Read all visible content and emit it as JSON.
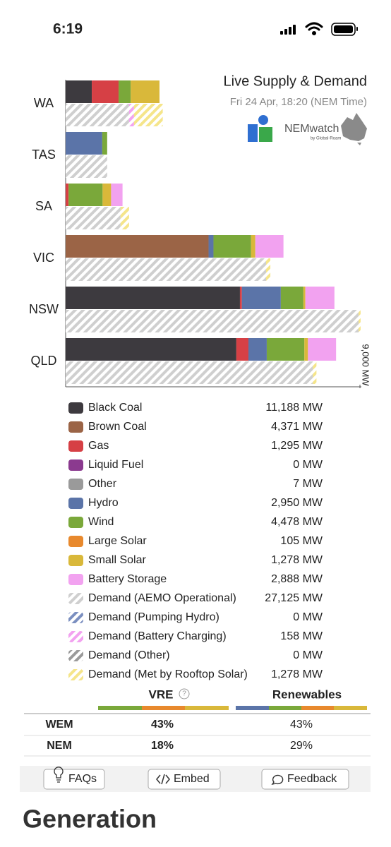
{
  "status_bar": {
    "time": "6:19"
  },
  "header": {
    "title": "Live Supply & Demand",
    "subtitle": "Fri 24 Apr, 18:20 (NEM Time)",
    "logo_text": "NEMwatch",
    "logo_subtext": "by Global-Roam"
  },
  "chart_data": {
    "type": "bar",
    "orientation": "horizontal",
    "stacked": true,
    "categories": [
      "WA",
      "TAS",
      "SA",
      "VIC",
      "NSW",
      "QLD"
    ],
    "xlim": [
      0,
      9000
    ],
    "xticks": [
      {
        "value": 9000,
        "label": "9,000 MW"
      }
    ],
    "series": [
      {
        "name": "Black Coal",
        "color": "#3d3a3f",
        "stack": "supply",
        "values": [
          800,
          null,
          null,
          null,
          5330,
          5220
        ],
        "total_label": "11,188 MW"
      },
      {
        "name": "Brown Coal",
        "color": "#9b6446",
        "stack": "supply",
        "values": [
          null,
          null,
          null,
          4371,
          null,
          null
        ],
        "total_label": "4,371 MW"
      },
      {
        "name": "Gas",
        "color": "#d64045",
        "stack": "supply",
        "values": [
          820,
          null,
          90,
          null,
          60,
          370
        ],
        "total_label": "1,295 MW"
      },
      {
        "name": "Liquid Fuel",
        "color": "#8b3a8f",
        "stack": "supply",
        "values": [
          null,
          null,
          null,
          null,
          null,
          null
        ],
        "total_label": "0 MW"
      },
      {
        "name": "Other",
        "color": "#9a9a9a",
        "stack": "supply",
        "values": [
          null,
          null,
          null,
          null,
          null,
          null
        ],
        "total_label": "7 MW"
      },
      {
        "name": "Hydro",
        "color": "#5b74a8",
        "stack": "supply",
        "values": [
          null,
          1120,
          null,
          150,
          1190,
          560
        ],
        "total_label": "2,950 MW"
      },
      {
        "name": "Wind",
        "color": "#7aa83a",
        "stack": "supply",
        "values": [
          370,
          150,
          1040,
          1150,
          690,
          1150
        ],
        "total_label": "4,478 MW"
      },
      {
        "name": "Large Solar",
        "color": "#e8892d",
        "stack": "supply",
        "values": [
          null,
          null,
          null,
          null,
          null,
          null
        ],
        "total_label": "105 MW"
      },
      {
        "name": "Small Solar",
        "color": "#d9b83a",
        "stack": "supply",
        "values": [
          880,
          null,
          260,
          130,
          60,
          110
        ],
        "total_label": "1,278 MW"
      },
      {
        "name": "Battery Storage",
        "color": "#f2a2f0",
        "stack": "supply",
        "values": [
          null,
          null,
          350,
          860,
          890,
          860
        ],
        "total_label": "2,888 MW"
      },
      {
        "name": "Demand (AEMO Operational)",
        "color": "#cfcfcf",
        "stack": "demand",
        "hatch": true,
        "values": [
          1940,
          1270,
          1680,
          6130,
          8960,
          7560
        ],
        "total_label": "27,125 MW"
      },
      {
        "name": "Demand (Pumping Hydro)",
        "color": "#7b8fc0",
        "stack": "demand",
        "hatch": true,
        "values": [
          null,
          null,
          null,
          null,
          null,
          null
        ],
        "total_label": "0 MW"
      },
      {
        "name": "Demand (Battery Charging)",
        "color": "#f2a2f0",
        "stack": "demand",
        "hatch": true,
        "values": [
          150,
          null,
          null,
          null,
          null,
          null
        ],
        "total_label": "158 MW"
      },
      {
        "name": "Demand (Other)",
        "color": "#9a9a9a",
        "stack": "demand",
        "hatch": true,
        "values": [
          null,
          null,
          null,
          null,
          null,
          null
        ],
        "total_label": "0 MW"
      },
      {
        "name": "Demand (Met by Rooftop Solar)",
        "color": "#f5e58a",
        "stack": "demand",
        "hatch": true,
        "values": [
          880,
          null,
          260,
          130,
          60,
          110
        ],
        "total_label": "1,278 MW"
      }
    ]
  },
  "share_table": {
    "columns": [
      "VRE",
      "Renewables"
    ],
    "help_icon": "?",
    "rows": [
      [
        "WEM",
        "43%",
        "43%"
      ],
      [
        "NEM",
        "18%",
        "29%"
      ]
    ]
  },
  "buttons": [
    "FAQs",
    "Embed",
    "Feedback"
  ],
  "section_heading": "Generation"
}
